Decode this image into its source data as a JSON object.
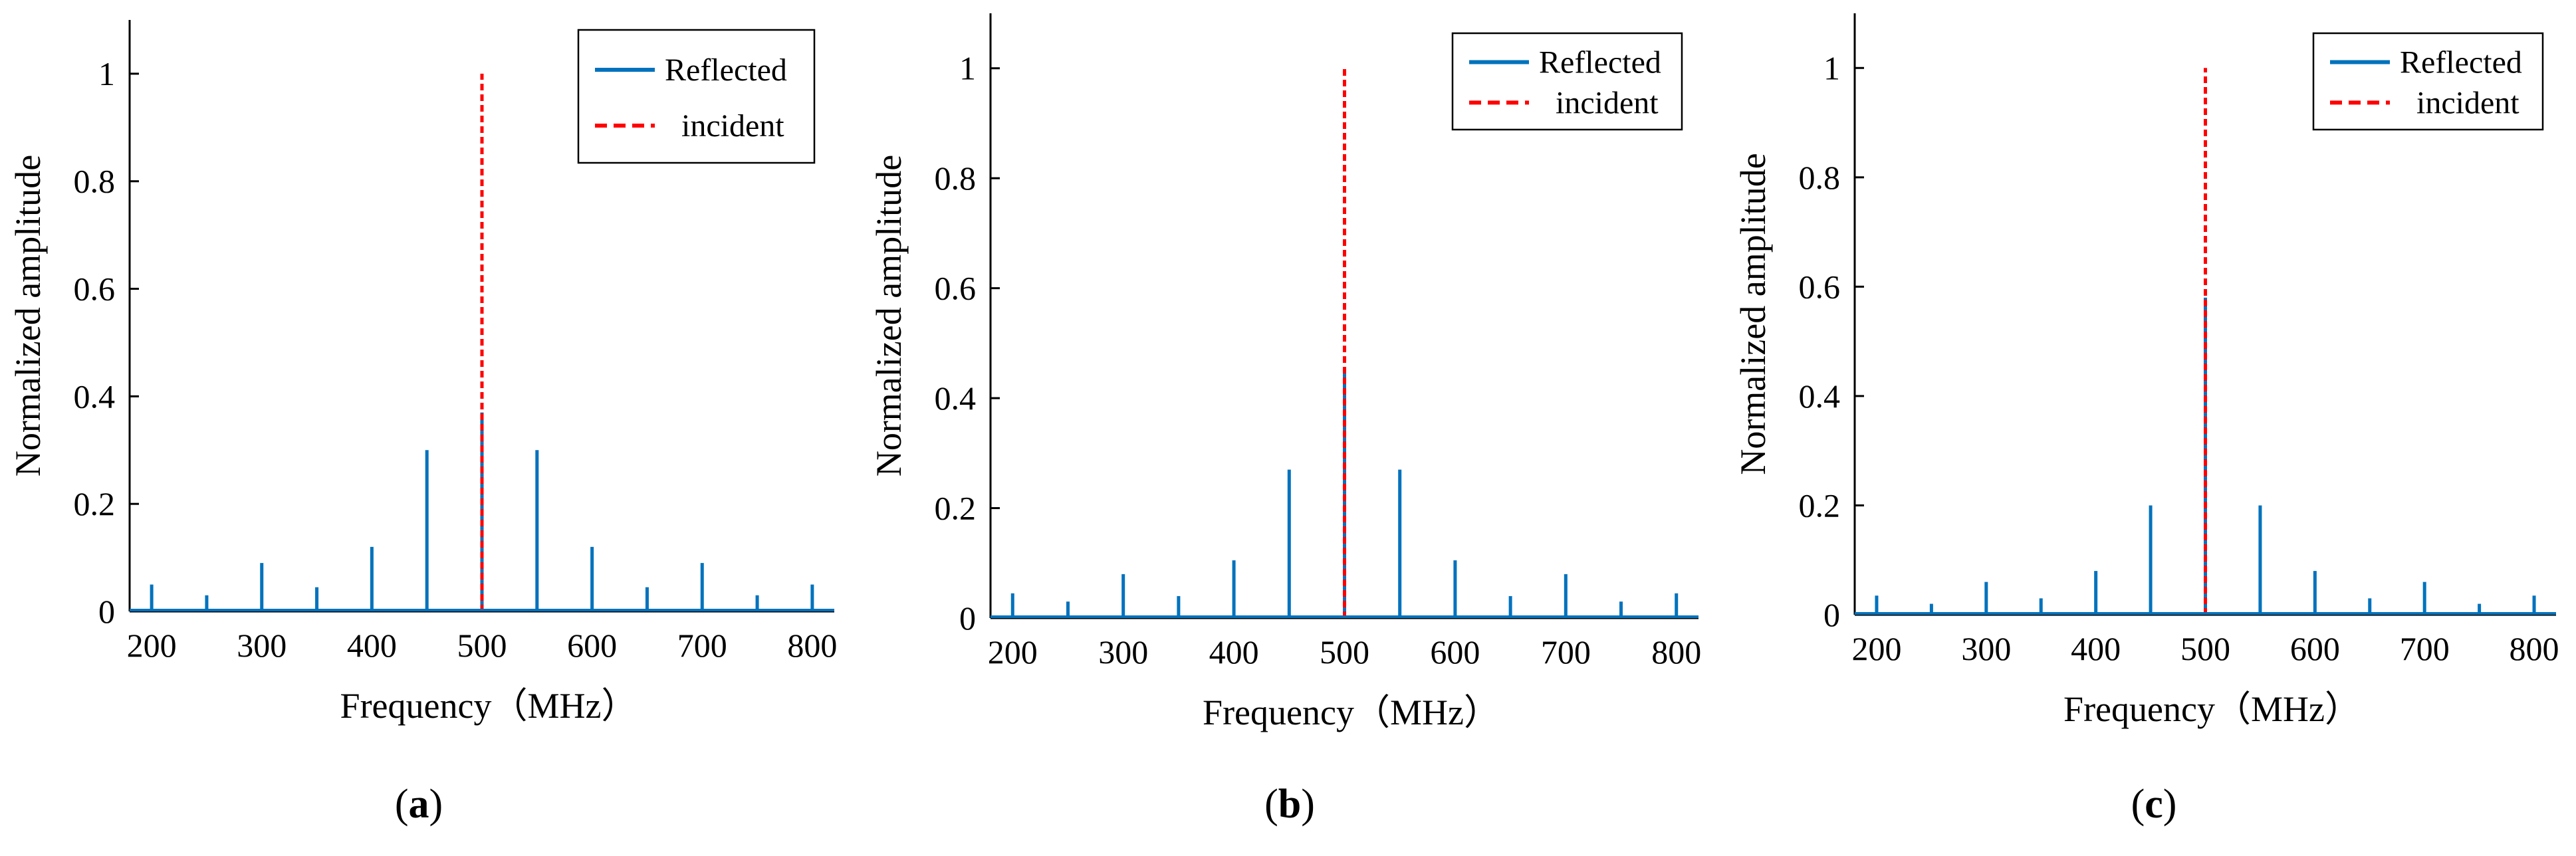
{
  "figure": {
    "colors": {
      "reflected": "#0072BD",
      "incident": "#FF0000",
      "axis": "#000000"
    }
  },
  "chart_data": [
    {
      "type": "stem",
      "panel_label": "a",
      "xlabel": "Frequency（MHz）",
      "ylabel": "Normalized amplitude",
      "xlim": [
        180,
        820
      ],
      "ylim": [
        0,
        1.1
      ],
      "xticks": [
        200,
        300,
        400,
        500,
        600,
        700,
        800
      ],
      "yticks": [
        0,
        0.2,
        0.4,
        0.6,
        0.8,
        1
      ],
      "ytick_labels": [
        "0",
        "0.2",
        "0.4",
        "0.6",
        "0.8",
        "1"
      ],
      "legend": {
        "position": "top-right",
        "entries": [
          "Reflected",
          "incident"
        ]
      },
      "series": [
        {
          "name": "Reflected",
          "style": "solid",
          "x": [
            200,
            250,
            300,
            350,
            400,
            450,
            500,
            550,
            600,
            650,
            700,
            750,
            800
          ],
          "values": [
            0.05,
            0.03,
            0.09,
            0.045,
            0.12,
            0.3,
            0.37,
            0.3,
            0.12,
            0.045,
            0.09,
            0.03,
            0.05
          ]
        },
        {
          "name": "incident",
          "style": "dashed",
          "x": [
            500
          ],
          "values": [
            1.0
          ]
        }
      ]
    },
    {
      "type": "stem",
      "panel_label": "b",
      "xlabel": "Frequency（MHz）",
      "ylabel": "Normalized amplitude",
      "xlim": [
        180,
        820
      ],
      "ylim": [
        0,
        1.1
      ],
      "xticks": [
        200,
        300,
        400,
        500,
        600,
        700,
        800
      ],
      "yticks": [
        0,
        0.2,
        0.4,
        0.6,
        0.8,
        1
      ],
      "ytick_labels": [
        "0",
        "0.2",
        "0.4",
        "0.6",
        "0.8",
        "1"
      ],
      "legend": {
        "position": "top-right",
        "entries": [
          "Reflected",
          "incident"
        ]
      },
      "series": [
        {
          "name": "Reflected",
          "style": "solid",
          "x": [
            200,
            250,
            300,
            350,
            400,
            450,
            500,
            550,
            600,
            650,
            700,
            750,
            800
          ],
          "values": [
            0.045,
            0.03,
            0.08,
            0.04,
            0.105,
            0.27,
            0.45,
            0.27,
            0.105,
            0.04,
            0.08,
            0.03,
            0.045
          ]
        },
        {
          "name": "incident",
          "style": "dashed",
          "x": [
            500
          ],
          "values": [
            1.0
          ]
        }
      ]
    },
    {
      "type": "stem",
      "panel_label": "c",
      "xlabel": "Frequency（MHz）",
      "ylabel": "Normalized amplitude",
      "xlim": [
        180,
        820
      ],
      "ylim": [
        0,
        1.1
      ],
      "xticks": [
        200,
        300,
        400,
        500,
        600,
        700,
        800
      ],
      "yticks": [
        0,
        0.2,
        0.4,
        0.6,
        0.8,
        1
      ],
      "ytick_labels": [
        "0",
        "0.2",
        "0.4",
        "0.6",
        "0.8",
        "1"
      ],
      "legend": {
        "position": "top-right",
        "entries": [
          "Reflected",
          "incident"
        ]
      },
      "series": [
        {
          "name": "Reflected",
          "style": "solid",
          "x": [
            200,
            250,
            300,
            350,
            400,
            450,
            500,
            550,
            600,
            650,
            700,
            750,
            800
          ],
          "values": [
            0.035,
            0.02,
            0.06,
            0.03,
            0.08,
            0.2,
            0.58,
            0.2,
            0.08,
            0.03,
            0.06,
            0.02,
            0.035
          ]
        },
        {
          "name": "incident",
          "style": "dashed",
          "x": [
            500
          ],
          "values": [
            1.0
          ]
        }
      ]
    }
  ]
}
